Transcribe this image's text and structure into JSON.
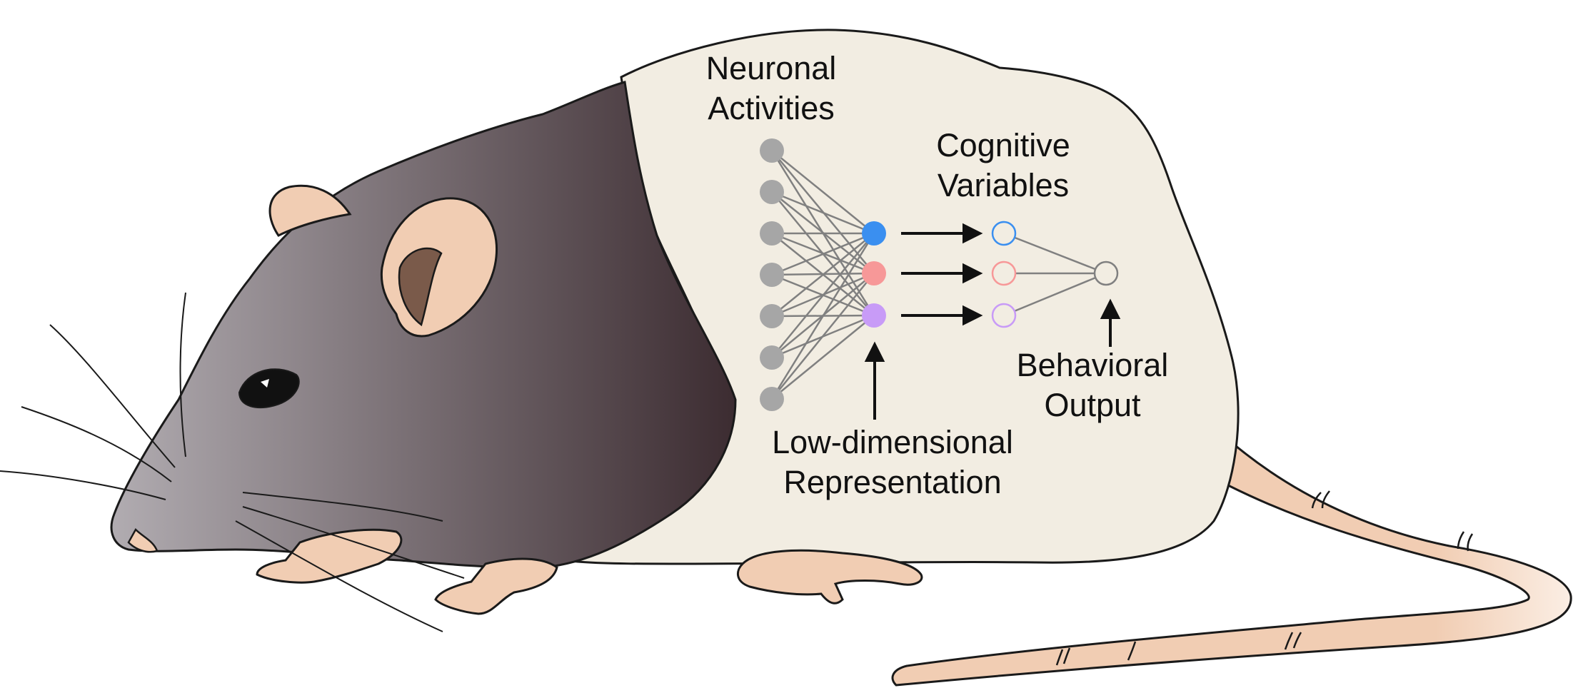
{
  "labels": {
    "neuronal_activities": "Neuronal\nActivities",
    "cognitive_variables": "Cognitive\nVariables",
    "behavioral_output": "Behavioral\nOutput",
    "low_dimensional_representation": "Low-dimensional\nRepresentation"
  },
  "colors": {
    "neuron_gray": "#a6a6a6",
    "latent_blue": "#3a8ff0",
    "latent_red": "#f79898",
    "latent_purple": "#c89bf7",
    "fur_dark_start": "#b1acb1",
    "fur_dark_end": "#3c2c31",
    "fur_light": "#f2ede2",
    "skin": "#f1cdb3"
  },
  "network": {
    "input_neuron_count": 7,
    "latent_nodes": [
      "blue",
      "red",
      "purple"
    ],
    "cognitive_nodes": [
      "blue",
      "red",
      "purple"
    ],
    "output_node_count": 1
  }
}
